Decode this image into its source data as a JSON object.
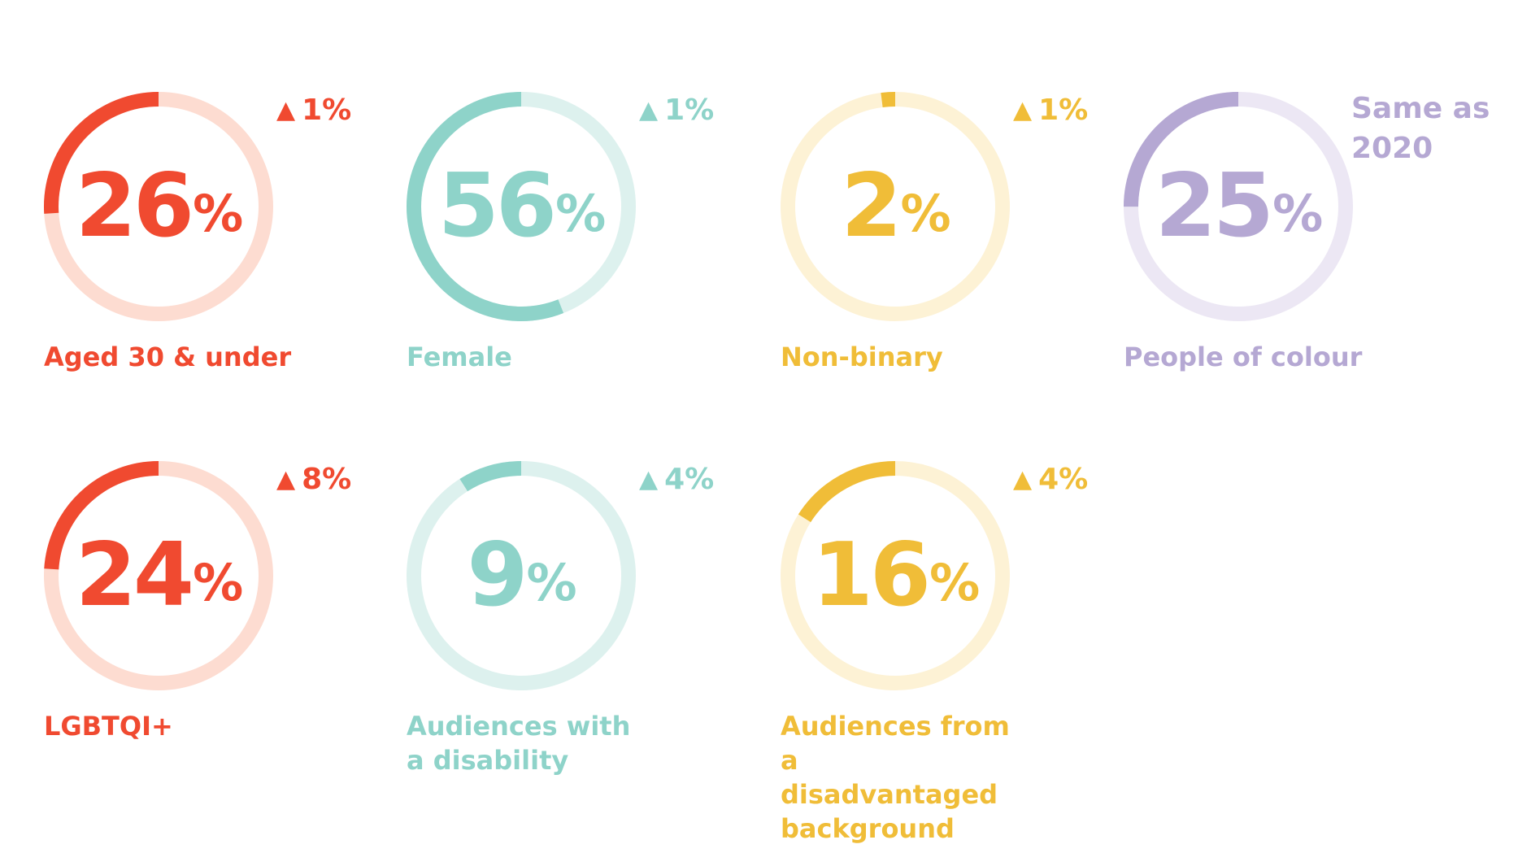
{
  "chart_data": {
    "type": "donut",
    "series": [
      {
        "value": 26,
        "unit": "%",
        "change_arrow": "▲",
        "change_text": "1%",
        "label": "Aged 30 & under",
        "color": "#F04A30",
        "track_color": "#FDDCD1"
      },
      {
        "value": 56,
        "unit": "%",
        "change_arrow": "▲",
        "change_text": "1%",
        "label": "Female",
        "color": "#8ED3C9",
        "track_color": "#DDF1EE"
      },
      {
        "value": 2,
        "unit": "%",
        "change_arrow": "▲",
        "change_text": "1%",
        "label": "Non-binary",
        "color": "#F0BD38",
        "track_color": "#FDF2D5"
      },
      {
        "value": 25,
        "unit": "%",
        "change_arrow": "",
        "change_text": "Same as 2020",
        "label": "People of colour",
        "color": "#B5A8D3",
        "track_color": "#ECE7F4"
      },
      {
        "value": 24,
        "unit": "%",
        "change_arrow": "▲",
        "change_text": "8%",
        "label": "LGBTQI+",
        "color": "#F04A30",
        "track_color": "#FDDCD1"
      },
      {
        "value": 9,
        "unit": "%",
        "change_arrow": "▲",
        "change_text": "4%",
        "label": "Audiences with a disability",
        "color": "#8ED3C9",
        "track_color": "#DDF1EE"
      },
      {
        "value": 16,
        "unit": "%",
        "change_arrow": "▲",
        "change_text": "4%",
        "label": "Audiences from a disadvantaged background",
        "color": "#F0BD38",
        "track_color": "#FDF2D5"
      }
    ]
  }
}
